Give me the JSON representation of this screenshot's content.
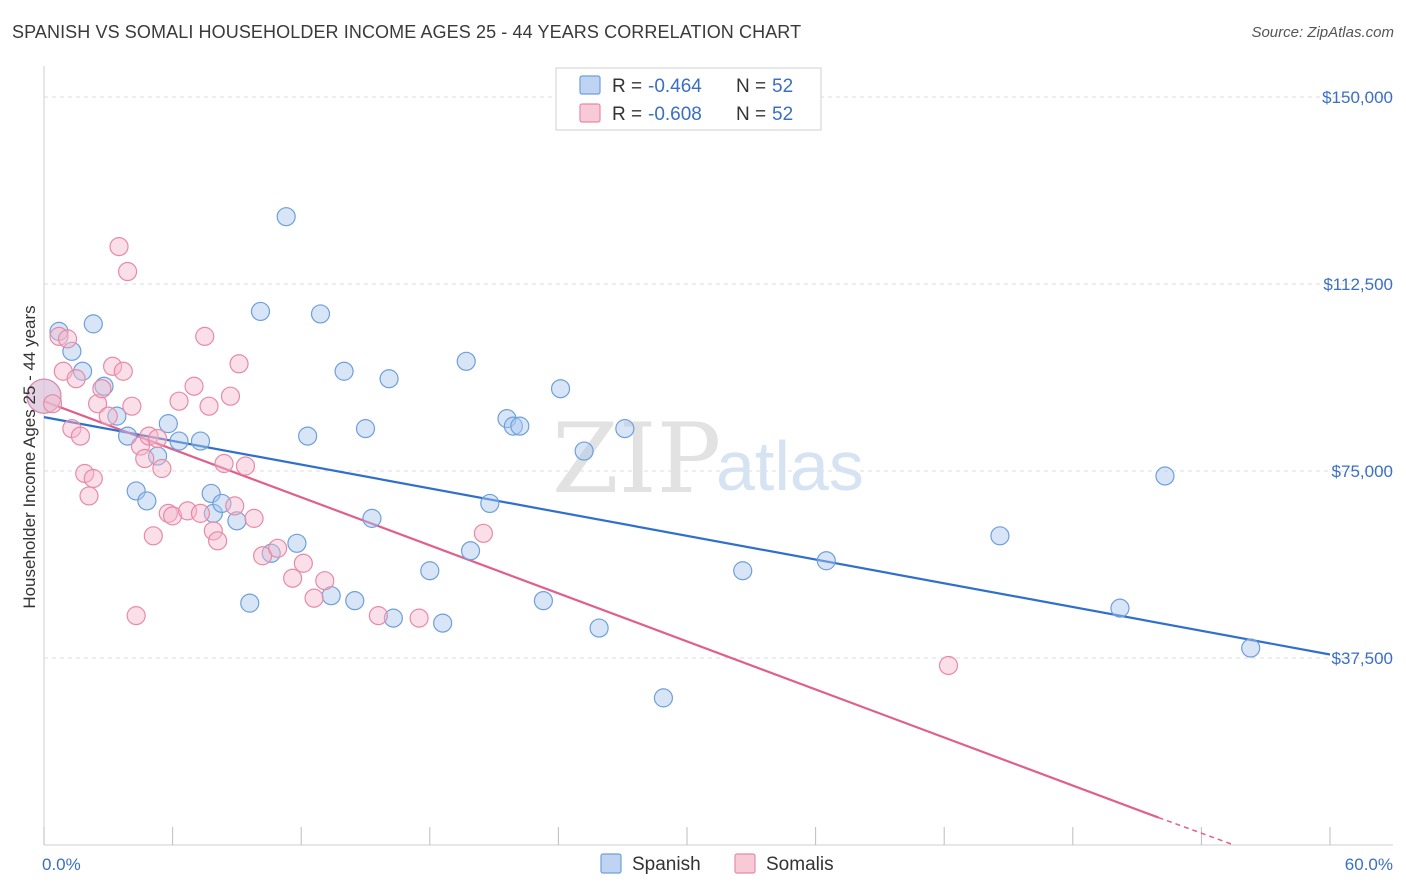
{
  "header": {
    "title": "SPANISH VS SOMALI HOUSEHOLDER INCOME AGES 25 - 44 YEARS CORRELATION CHART",
    "source": "Source: ZipAtlas.com"
  },
  "watermark": {
    "zip": "ZIP",
    "atlas": "atlas"
  },
  "legend": {
    "rows": [
      {
        "r_label": "R = ",
        "r_value": "-0.464",
        "n_label": "N = ",
        "n_value": "52",
        "color": "#a9c6ee"
      },
      {
        "r_label": "R = ",
        "r_value": "-0.608",
        "n_label": "N = ",
        "n_value": "52",
        "color": "#f5b8cb"
      }
    ]
  },
  "chart_data": {
    "type": "scatter",
    "title": "SPANISH VS SOMALI HOUSEHOLDER INCOME AGES 25 - 44 YEARS CORRELATION CHART",
    "ylabel": "Householder Income Ages 25 - 44 years",
    "xlim": [
      0,
      60
    ],
    "ylim": [
      0,
      160000
    ],
    "x_tick_labels": [
      "0.0%",
      "60.0%"
    ],
    "y_ticks": [
      {
        "value": 37500,
        "label": "$37,500"
      },
      {
        "value": 75000,
        "label": "$75,000"
      },
      {
        "value": 112500,
        "label": "$112,500"
      },
      {
        "value": 150000,
        "label": "$150,000"
      }
    ],
    "grid": true,
    "legend_position": "bottom",
    "series": [
      {
        "name": "Spanish",
        "color": "#a9c6ee",
        "stroke": "#6e9fdc",
        "trend_color": "#2f6fce",
        "trend": {
          "x0": 0,
          "y0": 85800,
          "x1": 60,
          "y1": 38200
        },
        "points": [
          [
            0.0,
            90000
          ],
          [
            0.7,
            103000
          ],
          [
            1.3,
            99000
          ],
          [
            1.8,
            95000
          ],
          [
            2.3,
            104500
          ],
          [
            2.8,
            92000
          ],
          [
            3.4,
            86000
          ],
          [
            3.9,
            82000
          ],
          [
            4.3,
            71000
          ],
          [
            4.8,
            69000
          ],
          [
            5.3,
            78000
          ],
          [
            5.8,
            84500
          ],
          [
            6.3,
            81000
          ],
          [
            7.3,
            81000
          ],
          [
            7.8,
            70500
          ],
          [
            7.9,
            66500
          ],
          [
            8.3,
            68500
          ],
          [
            9.0,
            65000
          ],
          [
            9.6,
            48500
          ],
          [
            10.1,
            107000
          ],
          [
            10.6,
            58500
          ],
          [
            11.3,
            126000
          ],
          [
            11.8,
            60500
          ],
          [
            12.3,
            82000
          ],
          [
            12.9,
            106500
          ],
          [
            13.4,
            50000
          ],
          [
            14.0,
            95000
          ],
          [
            14.5,
            49000
          ],
          [
            15.0,
            83500
          ],
          [
            15.3,
            65500
          ],
          [
            16.1,
            93500
          ],
          [
            16.3,
            45500
          ],
          [
            18.0,
            55000
          ],
          [
            18.6,
            44500
          ],
          [
            19.7,
            97000
          ],
          [
            19.9,
            59000
          ],
          [
            20.8,
            68500
          ],
          [
            21.6,
            85500
          ],
          [
            21.9,
            84000
          ],
          [
            22.2,
            84000
          ],
          [
            23.3,
            49000
          ],
          [
            24.1,
            91500
          ],
          [
            25.2,
            79000
          ],
          [
            25.9,
            43500
          ],
          [
            27.1,
            83500
          ],
          [
            28.9,
            29500
          ],
          [
            32.6,
            55000
          ],
          [
            36.5,
            57000
          ],
          [
            44.6,
            62000
          ],
          [
            50.2,
            47500
          ],
          [
            52.3,
            74000
          ],
          [
            56.3,
            39500
          ]
        ]
      },
      {
        "name": "Somalis",
        "color": "#f5b8cb",
        "stroke": "#e88aa7",
        "trend_color": "#e0608c",
        "trend": {
          "x0": 0,
          "y0": 89000,
          "x1": 52,
          "y1": 5500
        },
        "trend_dashed_to": {
          "x": 60,
          "y": -7000
        },
        "points": [
          [
            0.0,
            90000
          ],
          [
            0.4,
            88500
          ],
          [
            0.7,
            102000
          ],
          [
            0.9,
            95000
          ],
          [
            1.1,
            101500
          ],
          [
            1.3,
            83500
          ],
          [
            1.5,
            93500
          ],
          [
            1.7,
            82000
          ],
          [
            1.9,
            74500
          ],
          [
            2.1,
            70000
          ],
          [
            2.3,
            73500
          ],
          [
            2.5,
            88500
          ],
          [
            2.7,
            91500
          ],
          [
            3.0,
            86000
          ],
          [
            3.2,
            96000
          ],
          [
            3.5,
            120000
          ],
          [
            3.7,
            95000
          ],
          [
            3.9,
            115000
          ],
          [
            4.1,
            88000
          ],
          [
            4.3,
            46000
          ],
          [
            4.5,
            80000
          ],
          [
            4.7,
            77500
          ],
          [
            4.9,
            82000
          ],
          [
            5.1,
            62000
          ],
          [
            5.3,
            81500
          ],
          [
            5.5,
            75500
          ],
          [
            5.8,
            66500
          ],
          [
            6.0,
            66000
          ],
          [
            6.3,
            89000
          ],
          [
            6.7,
            67000
          ],
          [
            7.0,
            92000
          ],
          [
            7.3,
            66500
          ],
          [
            7.5,
            102000
          ],
          [
            7.7,
            88000
          ],
          [
            7.9,
            63000
          ],
          [
            8.1,
            61000
          ],
          [
            8.4,
            76500
          ],
          [
            8.7,
            90000
          ],
          [
            8.9,
            68000
          ],
          [
            9.1,
            96500
          ],
          [
            9.4,
            76000
          ],
          [
            9.8,
            65500
          ],
          [
            10.2,
            58000
          ],
          [
            10.9,
            59500
          ],
          [
            11.6,
            53500
          ],
          [
            12.1,
            56500
          ],
          [
            12.6,
            49500
          ],
          [
            13.1,
            53000
          ],
          [
            15.6,
            46000
          ],
          [
            17.5,
            45500
          ],
          [
            20.5,
            62500
          ],
          [
            42.2,
            36000
          ]
        ]
      }
    ]
  }
}
